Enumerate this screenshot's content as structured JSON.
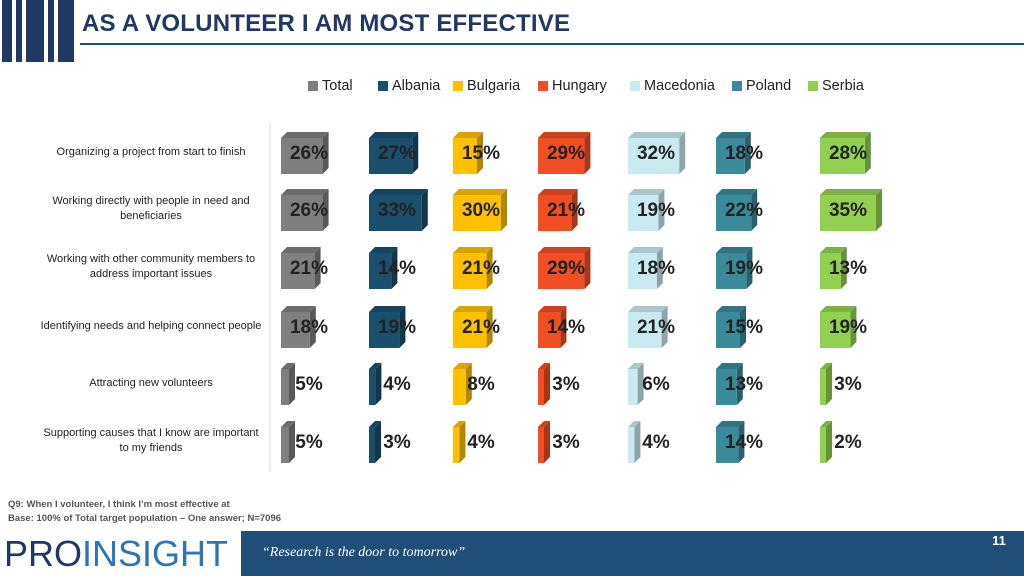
{
  "header": {
    "title": "AS A VOLUNTEER I AM MOST EFFECTIVE"
  },
  "chart_data": {
    "type": "bar",
    "categories": [
      "Organizing a project from start to finish",
      "Working directly with people in need and beneficiaries",
      "Working with other community members to address important issues",
      "Identifying needs and helping connect people",
      "Attracting new volunteers",
      "Supporting causes that I know are important to my friends"
    ],
    "series": [
      {
        "name": "Total",
        "color": "#7f7f7f",
        "values": [
          26,
          26,
          21,
          18,
          5,
          5
        ]
      },
      {
        "name": "Albania",
        "color": "#1a4f6e",
        "values": [
          27,
          33,
          14,
          19,
          4,
          3
        ]
      },
      {
        "name": "Bulgaria",
        "color": "#ffc000",
        "values": [
          15,
          30,
          21,
          21,
          8,
          4
        ]
      },
      {
        "name": "Hungary",
        "color": "#f04e23",
        "values": [
          29,
          21,
          29,
          14,
          3,
          3
        ]
      },
      {
        "name": "Macedonia",
        "color": "#c9eaf0",
        "values": [
          32,
          19,
          18,
          21,
          6,
          4
        ]
      },
      {
        "name": "Poland",
        "color": "#3a8a9a",
        "values": [
          18,
          22,
          19,
          15,
          13,
          14
        ]
      },
      {
        "name": "Serbia",
        "color": "#92d050",
        "values": [
          28,
          35,
          13,
          19,
          3,
          2
        ]
      }
    ],
    "value_suffix": "%",
    "legend_position": "top",
    "grid": false
  },
  "footnotes": {
    "question": "Q9: When I volunteer, I think I’m most effective at",
    "base": "Base: 100% of Total target population – One answer; N=7096"
  },
  "footer": {
    "logo_pro": "PRO",
    "logo_insight": "INSIGHT",
    "tagline": "“Research is the door to tomorrow”",
    "page_number": "11"
  }
}
